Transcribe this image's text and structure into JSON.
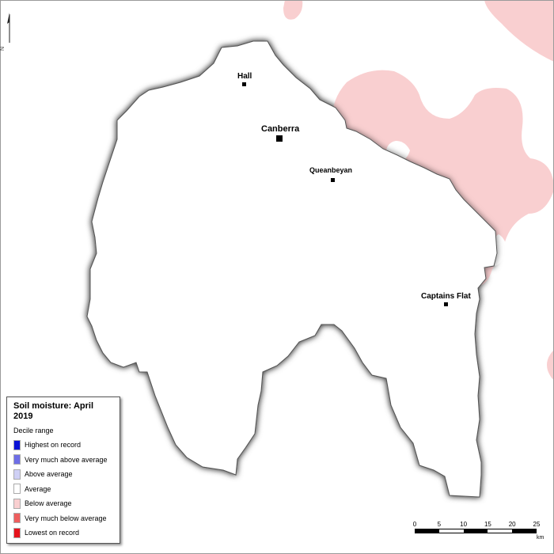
{
  "legend": {
    "title": "Soil moisture: April 2019",
    "subtitle": "Decile range",
    "items": [
      {
        "label": "Highest on record",
        "color": "#0a12d6"
      },
      {
        "label": "Very much above average",
        "color": "#6e6ee6"
      },
      {
        "label": "Above average",
        "color": "#cfd0f5"
      },
      {
        "label": "Average",
        "color": "#ffffff"
      },
      {
        "label": "Below average",
        "color": "#f9cfd0"
      },
      {
        "label": "Very much below average",
        "color": "#ee5e5e"
      },
      {
        "label": "Lowest on record",
        "color": "#e6121c"
      }
    ]
  },
  "towns": {
    "hall": "Hall",
    "canberra": "Canberra",
    "queanbeyan": "Queanbeyan",
    "captains_flat": "Captains Flat"
  },
  "north_label": "N",
  "scale": {
    "ticks": [
      "0",
      "5",
      "10",
      "15",
      "20",
      "25"
    ],
    "unit": "km"
  },
  "colors": {
    "below_average": "#f9cfd0",
    "above_average": "#cfd0f5",
    "region_outline": "#555555"
  }
}
